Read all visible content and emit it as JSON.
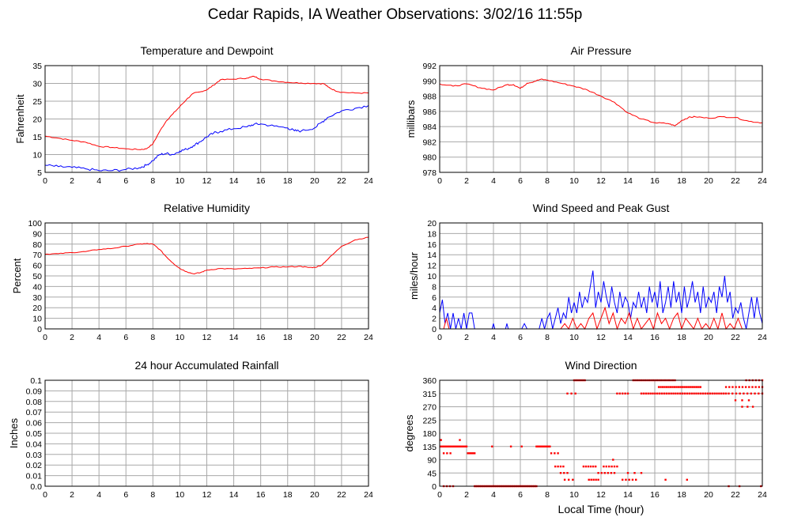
{
  "title": "Cedar Rapids, IA Weather Observations: 3/02/16 11:55p",
  "bottom_xlabel": "Local Time (hour)",
  "colors": {
    "red": "#ff0000",
    "blue": "#0000ff",
    "grid": "#a8a8a8"
  },
  "chart_data": [
    {
      "id": "temperature",
      "type": "line",
      "title": "Temperature and Dewpoint",
      "ylabel": "Fahrenheit",
      "xlim": [
        0,
        24
      ],
      "ylim": [
        5,
        35
      ],
      "xticks": [
        0,
        2,
        4,
        6,
        8,
        10,
        12,
        14,
        16,
        18,
        20,
        22,
        24
      ],
      "yticks": [
        5,
        10,
        15,
        20,
        25,
        30,
        35
      ],
      "series": [
        {
          "color": "#ff0000",
          "jitter": 0.15,
          "x": [
            0,
            1,
            2,
            3,
            4,
            5,
            6,
            7,
            7.5,
            8,
            8.5,
            9,
            9.5,
            10,
            10.5,
            11,
            11.5,
            12,
            12.5,
            13,
            14,
            15,
            15.5,
            16,
            17,
            18,
            19,
            20,
            20.7,
            21,
            21.5,
            22,
            23,
            24
          ],
          "y": [
            15.2,
            14.6,
            14,
            13.5,
            12.3,
            12,
            11.6,
            11.4,
            11.6,
            13,
            16.5,
            19.5,
            21.5,
            23.5,
            25.5,
            27.2,
            27.6,
            28.2,
            29.5,
            31,
            31.2,
            31.5,
            32,
            31.2,
            30.7,
            30.3,
            30.1,
            30,
            29.9,
            29,
            28,
            27.5,
            27.3,
            27.3
          ]
        },
        {
          "color": "#0000ff",
          "jitter": 0.35,
          "x": [
            0,
            1,
            2,
            3,
            4,
            5,
            6,
            7,
            7.5,
            8,
            8.5,
            9,
            9.5,
            10,
            10.5,
            11,
            11.5,
            12,
            12.5,
            13,
            14,
            15,
            15.5,
            16,
            17,
            18,
            18.5,
            19,
            20,
            20.5,
            21,
            22,
            23,
            24
          ],
          "y": [
            7,
            6.6,
            6.4,
            6,
            5.5,
            5.5,
            5.8,
            6.3,
            7,
            8.3,
            10,
            10.3,
            10,
            11,
            11.5,
            12.5,
            13.6,
            15,
            16,
            16.5,
            17.3,
            17.8,
            18.5,
            18.6,
            18,
            17.5,
            16.7,
            16.6,
            17.5,
            19,
            20.5,
            22.3,
            23,
            23.8
          ]
        }
      ]
    },
    {
      "id": "pressure",
      "type": "line",
      "title": "Air Pressure",
      "ylabel": "millibars",
      "xlim": [
        0,
        24
      ],
      "ylim": [
        978,
        992
      ],
      "xticks": [
        0,
        2,
        4,
        6,
        8,
        10,
        12,
        14,
        16,
        18,
        20,
        22,
        24
      ],
      "yticks": [
        978,
        980,
        982,
        984,
        986,
        988,
        990,
        992
      ],
      "series": [
        {
          "color": "#ff0000",
          "jitter": 0.08,
          "x": [
            0,
            1,
            2,
            3,
            4,
            5,
            5.5,
            6,
            6.5,
            7,
            7.5,
            8,
            9,
            10,
            11,
            12,
            13,
            14,
            15,
            16,
            17,
            17.5,
            18,
            18.5,
            19,
            20,
            21,
            22,
            23,
            24
          ],
          "y": [
            989.6,
            989.3,
            989.6,
            989.1,
            988.8,
            989.5,
            989.5,
            989,
            989.7,
            989.9,
            990.2,
            990.1,
            989.7,
            989.3,
            988.8,
            988,
            987.2,
            985.8,
            985,
            984.5,
            984.4,
            984.1,
            984.8,
            985.2,
            985.3,
            985.1,
            985.3,
            985.2,
            984.7,
            984.5
          ]
        }
      ]
    },
    {
      "id": "humidity",
      "type": "line",
      "title": "Relative Humidity",
      "ylabel": "Percent",
      "xlim": [
        0,
        24
      ],
      "ylim": [
        0,
        100
      ],
      "xticks": [
        0,
        2,
        4,
        6,
        8,
        10,
        12,
        14,
        16,
        18,
        20,
        22,
        24
      ],
      "yticks": [
        0,
        10,
        20,
        30,
        40,
        50,
        60,
        70,
        80,
        90,
        100
      ],
      "series": [
        {
          "color": "#ff0000",
          "jitter": 0.4,
          "x": [
            0,
            1,
            2,
            3,
            4,
            5,
            6,
            7,
            7.5,
            8,
            8.5,
            9,
            9.5,
            10,
            10.5,
            11,
            11.5,
            12,
            13,
            14,
            15,
            16,
            17,
            18,
            19,
            19.5,
            20,
            20.5,
            21,
            22,
            23,
            24
          ],
          "y": [
            70.5,
            71,
            72,
            73,
            75,
            76,
            78,
            80,
            80.5,
            80,
            75,
            68,
            62,
            57,
            54,
            52,
            53,
            55.5,
            57,
            56.5,
            57,
            57.5,
            58.5,
            58.5,
            59,
            58,
            58,
            60,
            66,
            78,
            84,
            86.5
          ]
        }
      ]
    },
    {
      "id": "wind_speed",
      "type": "line",
      "title": "Wind Speed and Peak Gust",
      "ylabel": "miles/hour",
      "xlim": [
        0,
        24
      ],
      "ylim": [
        0,
        20
      ],
      "xticks": [
        0,
        2,
        4,
        6,
        8,
        10,
        12,
        14,
        16,
        18,
        20,
        22,
        24
      ],
      "yticks": [
        0,
        2,
        4,
        6,
        8,
        10,
        12,
        14,
        16,
        18,
        20
      ],
      "series": [
        {
          "color": "#0000ff",
          "x": [
            0,
            0.2,
            0.4,
            0.6,
            0.8,
            1,
            1.2,
            1.4,
            1.6,
            1.8,
            2,
            2.2,
            2.4,
            2.6,
            3.9,
            4,
            4.1,
            4.9,
            5,
            5.1,
            6.1,
            6.3,
            6.5,
            7.4,
            7.6,
            7.8,
            8,
            8.2,
            8.4,
            8.6,
            8.8,
            9,
            9.2,
            9.4,
            9.6,
            9.8,
            10,
            10.2,
            10.4,
            10.6,
            10.8,
            11,
            11.2,
            11.4,
            11.6,
            11.8,
            12,
            12.2,
            12.4,
            12.6,
            12.8,
            13,
            13.2,
            13.4,
            13.6,
            13.8,
            14,
            14.2,
            14.4,
            14.6,
            14.8,
            15,
            15.2,
            15.4,
            15.6,
            15.8,
            16,
            16.2,
            16.4,
            16.6,
            16.8,
            17,
            17.2,
            17.4,
            17.6,
            17.8,
            18,
            18.2,
            18.4,
            18.6,
            18.8,
            19,
            19.2,
            19.4,
            19.6,
            19.8,
            20,
            20.2,
            20.4,
            20.6,
            20.8,
            21,
            21.2,
            21.4,
            21.6,
            21.8,
            22,
            22.2,
            22.4,
            22.6,
            22.8,
            23,
            23.2,
            23.4,
            23.6,
            23.8,
            24
          ],
          "y": [
            3,
            5.5,
            1,
            3,
            0,
            3,
            0,
            2,
            0,
            3,
            0,
            3,
            3,
            0,
            0,
            1,
            0,
            0,
            1,
            0,
            0,
            1,
            0,
            0,
            2,
            0,
            2,
            3,
            0,
            2,
            4,
            1,
            3,
            2,
            6,
            3,
            5,
            3,
            7,
            4,
            6,
            5,
            8,
            11,
            4,
            7,
            5,
            9,
            6,
            4,
            8,
            5,
            3,
            7,
            4,
            6,
            5,
            2,
            5,
            4,
            7,
            4,
            6,
            3,
            8,
            5,
            7,
            4,
            9,
            3,
            5,
            8,
            4,
            9,
            5,
            7,
            3,
            8,
            4,
            6,
            9,
            5,
            7,
            3,
            8,
            4,
            6,
            5,
            7,
            3,
            8,
            6,
            10,
            5,
            7,
            2,
            4,
            3,
            5,
            2,
            0,
            3,
            6,
            2,
            6,
            3,
            1
          ]
        },
        {
          "color": "#ff0000",
          "x": [
            0,
            0.3,
            0.5,
            0.7,
            1,
            9,
            9.3,
            9.6,
            9.9,
            10.2,
            10.5,
            10.8,
            11.1,
            11.4,
            11.7,
            12,
            12.3,
            12.6,
            12.9,
            13.2,
            13.5,
            13.8,
            14.1,
            14.4,
            14.7,
            15,
            15.3,
            15.6,
            15.9,
            16.2,
            16.5,
            16.8,
            17.1,
            17.4,
            17.7,
            18,
            18.3,
            18.6,
            18.9,
            19.2,
            19.5,
            19.8,
            20.1,
            20.4,
            20.7,
            21,
            21.3,
            21.6,
            21.9,
            22.2,
            22.5,
            24
          ],
          "y": [
            0,
            0,
            2,
            0,
            0,
            0,
            1,
            0,
            2,
            0,
            1,
            0,
            2,
            3,
            0,
            2,
            4,
            1,
            3,
            0,
            2,
            1,
            3,
            0,
            2,
            0,
            1,
            2,
            0,
            3,
            1,
            2,
            0,
            2,
            3,
            0,
            2,
            1,
            0,
            2,
            0,
            1,
            0,
            2,
            0,
            3,
            0,
            1,
            0,
            2,
            0,
            0
          ]
        }
      ]
    },
    {
      "id": "rainfall",
      "type": "line",
      "title": "24 hour Accumulated Rainfall",
      "ylabel": "Inches",
      "xlim": [
        0,
        24
      ],
      "ylim": [
        0,
        0.1
      ],
      "xticks": [
        0,
        2,
        4,
        6,
        8,
        10,
        12,
        14,
        16,
        18,
        20,
        22,
        24
      ],
      "yticks": [
        0.0,
        0.01,
        0.02,
        0.03,
        0.04,
        0.05,
        0.06,
        0.07,
        0.08,
        0.09,
        0.1
      ],
      "ytick_labels": [
        "0.0",
        "0.01",
        "0.02",
        "0.03",
        "0.04",
        "0.05",
        "0.06",
        "0.07",
        "0.08",
        "0.09",
        "0.1"
      ],
      "series": [
        {
          "color": "#ff0000",
          "x": [
            0,
            24
          ],
          "y": [
            0,
            0
          ]
        }
      ]
    },
    {
      "id": "wind_direction",
      "type": "scatter",
      "title": "Wind Direction",
      "ylabel": "degrees",
      "xlim": [
        0,
        24
      ],
      "ylim": [
        0,
        360
      ],
      "xticks": [
        0,
        2,
        4,
        6,
        8,
        10,
        12,
        14,
        16,
        18,
        20,
        22,
        24
      ],
      "yticks": [
        0,
        45,
        90,
        135,
        180,
        225,
        270,
        315,
        360
      ],
      "clusters": [
        {
          "x0": 0.1,
          "x1": 2.0,
          "y": 135,
          "n": 16
        },
        {
          "x0": 0.3,
          "x1": 0.8,
          "y": 112,
          "n": 3
        },
        {
          "x0": 2.1,
          "x1": 2.6,
          "y": 112,
          "n": 5
        },
        {
          "x0": 0.3,
          "x1": 1.0,
          "y": 0,
          "n": 4
        },
        {
          "x0": 2.6,
          "x1": 7.2,
          "y": 0,
          "n": 50
        },
        {
          "x0": 7.2,
          "x1": 8.2,
          "y": 135,
          "n": 10
        },
        {
          "x0": 8.3,
          "x1": 8.8,
          "y": 112,
          "n": 3
        },
        {
          "x0": 8.6,
          "x1": 9.2,
          "y": 67,
          "n": 4
        },
        {
          "x0": 9.0,
          "x1": 9.5,
          "y": 45,
          "n": 3
        },
        {
          "x0": 9.3,
          "x1": 9.9,
          "y": 22,
          "n": 3
        },
        {
          "x0": 9.5,
          "x1": 10.1,
          "y": 315,
          "n": 3
        },
        {
          "x0": 10.0,
          "x1": 10.8,
          "y": 360,
          "n": 7
        },
        {
          "x0": 10.7,
          "x1": 11.6,
          "y": 67,
          "n": 6
        },
        {
          "x0": 11.1,
          "x1": 11.8,
          "y": 22,
          "n": 5
        },
        {
          "x0": 11.8,
          "x1": 13.0,
          "y": 45,
          "n": 6
        },
        {
          "x0": 12.2,
          "x1": 13.2,
          "y": 67,
          "n": 6
        },
        {
          "x0": 13.2,
          "x1": 14.0,
          "y": 315,
          "n": 5
        },
        {
          "x0": 13.6,
          "x1": 14.6,
          "y": 22,
          "n": 5
        },
        {
          "x0": 14.0,
          "x1": 15.0,
          "y": 45,
          "n": 3
        },
        {
          "x0": 14.4,
          "x1": 17.5,
          "y": 360,
          "n": 22
        },
        {
          "x0": 15.0,
          "x1": 21.3,
          "y": 315,
          "n": 38
        },
        {
          "x0": 16.3,
          "x1": 19.4,
          "y": 337,
          "n": 22
        },
        {
          "x0": 21.3,
          "x1": 24.0,
          "y": 337,
          "n": 12
        },
        {
          "x0": 21.5,
          "x1": 24.0,
          "y": 315,
          "n": 10
        },
        {
          "x0": 22.0,
          "x1": 23.0,
          "y": 292,
          "n": 3
        },
        {
          "x0": 22.5,
          "x1": 23.3,
          "y": 270,
          "n": 3
        },
        {
          "x0": 22.8,
          "x1": 24.0,
          "y": 360,
          "n": 6
        }
      ],
      "points": [
        {
          "x": 0.1,
          "y": 157
        },
        {
          "x": 1.5,
          "y": 157
        },
        {
          "x": 16.8,
          "y": 22
        },
        {
          "x": 18.4,
          "y": 22
        },
        {
          "x": 12.9,
          "y": 90
        },
        {
          "x": 21.5,
          "y": 0
        },
        {
          "x": 22.3,
          "y": 0
        },
        {
          "x": 23.9,
          "y": 0
        },
        {
          "x": 3.9,
          "y": 135
        },
        {
          "x": 5.3,
          "y": 135
        },
        {
          "x": 6.1,
          "y": 135
        }
      ]
    }
  ]
}
